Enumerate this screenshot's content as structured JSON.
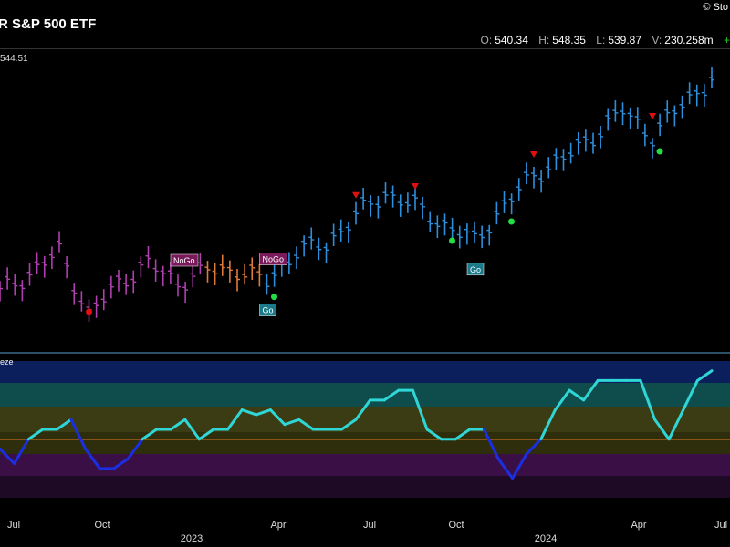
{
  "header": {
    "title": "R S&P 500 ETF",
    "brand": "© Sto",
    "ohlc": [
      {
        "key": "O:",
        "value": "540.34"
      },
      {
        "key": "H:",
        "value": "548.35"
      },
      {
        "key": "L:",
        "value": "539.87"
      },
      {
        "key": "V:",
        "value": "230.258m"
      }
    ],
    "change": "+"
  },
  "price_label": "544.51",
  "lower_panel_label": "eze",
  "chart_data": [
    {
      "type": "bar",
      "subtype": "ohlc-price-bars",
      "x": [
        "2022-06",
        "2022-07",
        "2022-08",
        "2022-09",
        "2022-10",
        "2022-11",
        "2022-12",
        "2023-01",
        "2023-02",
        "2023-03",
        "2023-04",
        "2023-05",
        "2023-06",
        "2023-07",
        "2023-08",
        "2023-09",
        "2023-10",
        "2023-11",
        "2023-12",
        "2024-01",
        "2024-02",
        "2024-03",
        "2024-04",
        "2024-05",
        "2024-06"
      ],
      "close": [
        378,
        392,
        410,
        360,
        385,
        400,
        385,
        395,
        395,
        386,
        410,
        415,
        438,
        455,
        445,
        430,
        418,
        445,
        470,
        482,
        500,
        520,
        500,
        525,
        544.51
      ],
      "color_regimes": [
        {
          "label": "NoGo",
          "start": "2022-06",
          "end": "2023-01",
          "color": "#b03fb0"
        },
        {
          "label": "NoGo",
          "start": "2023-01",
          "end": "2023-03",
          "color": "#e07a3a"
        },
        {
          "label": "Go",
          "start": "2023-03",
          "end": "2024-06",
          "color": "#2d8fdc"
        }
      ],
      "annotations": [
        {
          "text": "NoGo",
          "x": "2022-12"
        },
        {
          "text": "NoGo",
          "x": "2023-03"
        },
        {
          "text": "Go",
          "x": "2023-03"
        },
        {
          "text": "Go",
          "x": "2023-10"
        }
      ],
      "markers": {
        "red_triangles": [
          "2023-06",
          "2023-08",
          "2023-12",
          "2024-04"
        ],
        "red_dots": [
          "2022-09"
        ],
        "green_dots": [
          "2023-03",
          "2023-09",
          "2023-11",
          "2024-04"
        ]
      }
    },
    {
      "type": "line",
      "subtype": "oscillator",
      "label": "eze",
      "x_ticks": [
        "Jul",
        "Oct",
        "Apr",
        "Jul",
        "Oct",
        "Apr",
        "Jul"
      ],
      "years": [
        "2023",
        "2024"
      ],
      "zero_line_color": "#e07a20",
      "series": [
        {
          "values": [
            -2,
            -5,
            0,
            2,
            2,
            4,
            -2,
            -6,
            -6,
            -4,
            0,
            2,
            2,
            4,
            0,
            2,
            2,
            6,
            5,
            6,
            3,
            4,
            2,
            2,
            2,
            4,
            8,
            8,
            10,
            10,
            2,
            0,
            0,
            2,
            2,
            -4,
            -8,
            -3,
            0,
            6,
            10,
            8,
            12,
            12,
            12,
            12,
            4,
            0,
            6,
            12,
            14
          ],
          "color": "#2fd6d6"
        }
      ],
      "ylim": [
        -12,
        16
      ]
    }
  ],
  "colors": {
    "nogo": "#b03fb0",
    "nogo_weak": "#e07a3a",
    "go": "#2d8fdc",
    "go_weak": "#8fe8c8",
    "osc_line": "#2fd6d6",
    "osc_negative": "#1a2fe0",
    "zero_line": "#e07a20"
  }
}
